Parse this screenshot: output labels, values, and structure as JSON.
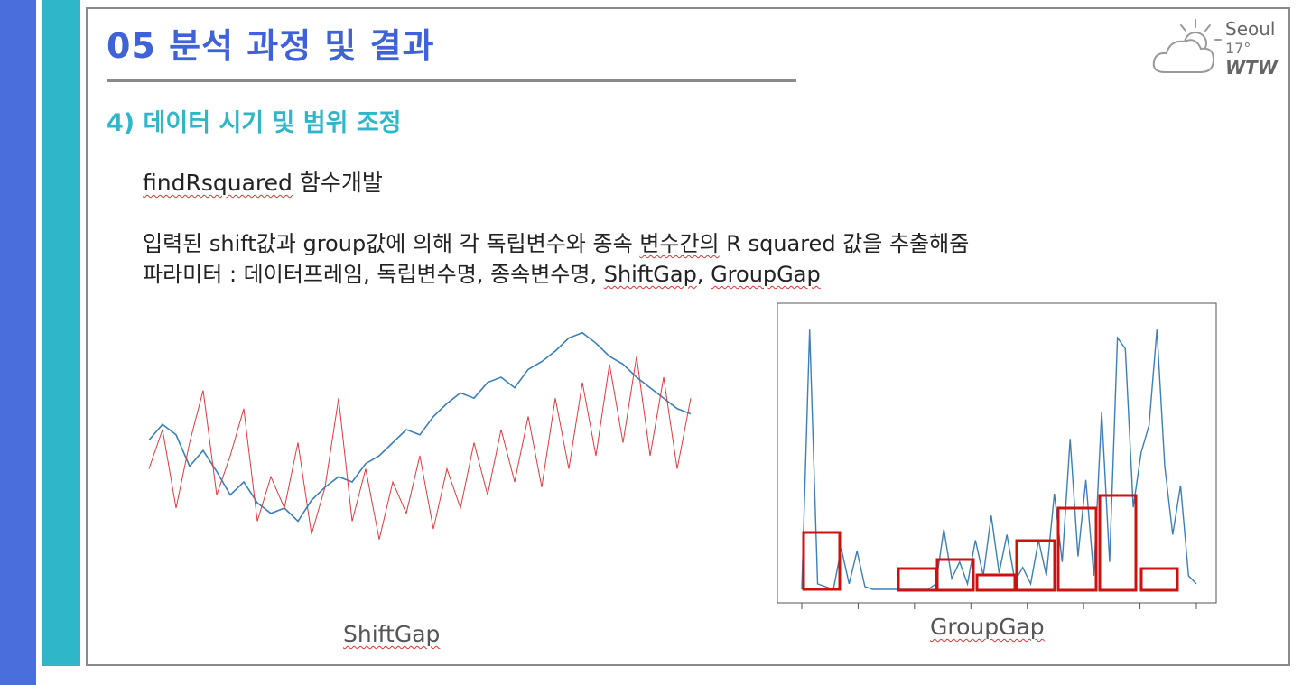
{
  "slide": {
    "title": "05 분석 과정 및 결과",
    "subtitle": "4) 데이터 시기 및 범위 조정",
    "function_name": "findRsquared",
    "function_suffix": " 함수개발",
    "desc_line1_a": "입력된 shift값과 group값에 의해 각 독립변수와 종속 ",
    "desc_line1_b": "변수간의",
    "desc_line1_c": " R squared 값을 추출해줌",
    "desc_line2_a": "파라미터 : 데이터프레임, 독립변수명, 종속변수명, ",
    "desc_line2_b": "ShiftGap",
    "desc_line2_c": ", ",
    "desc_line2_d": "GroupGap"
  },
  "weather": {
    "city": "Seoul",
    "temp": "17°",
    "brand": "WTW",
    "icon": "cloud-sun-icon"
  },
  "captions": {
    "left": "ShiftGap",
    "right": "GroupGap"
  },
  "colors": {
    "accent_blue": "#4a6fdc",
    "accent_teal": "#2fb6c8",
    "series_blue": "#3b7fb8",
    "series_red": "#e0393c",
    "box_red": "#cc1111"
  },
  "chart_data": [
    {
      "type": "line",
      "series": [
        {
          "values": [
            0.56,
            0.62,
            0.58,
            0.46,
            0.52,
            0.44,
            0.35,
            0.4,
            0.32,
            0.28,
            0.3,
            0.25,
            0.33,
            0.38,
            0.42,
            0.4,
            0.47,
            0.5,
            0.55,
            0.6,
            0.58,
            0.65,
            0.7,
            0.74,
            0.72,
            0.78,
            0.8,
            0.76,
            0.83,
            0.86,
            0.9,
            0.95,
            0.97,
            0.93,
            0.88,
            0.85,
            0.8,
            0.76,
            0.72,
            0.68,
            0.66
          ]
        },
        {
          "values": [
            0.45,
            0.6,
            0.3,
            0.55,
            0.75,
            0.35,
            0.5,
            0.68,
            0.25,
            0.42,
            0.3,
            0.55,
            0.2,
            0.38,
            0.72,
            0.25,
            0.45,
            0.18,
            0.4,
            0.28,
            0.5,
            0.22,
            0.45,
            0.3,
            0.55,
            0.35,
            0.6,
            0.4,
            0.65,
            0.38,
            0.72,
            0.45,
            0.78,
            0.5,
            0.85,
            0.55,
            0.88,
            0.5,
            0.8,
            0.45,
            0.72
          ]
        }
      ]
    },
    {
      "type": "line",
      "series": [
        {
          "values": [
            0.0,
            0.95,
            0.02,
            0.01,
            0.0,
            0.15,
            0.02,
            0.14,
            0.01,
            0.0,
            0.0,
            0.0,
            0.0,
            0.0,
            0.0,
            0.0,
            0.0,
            0.02,
            0.22,
            0.04,
            0.1,
            0.02,
            0.18,
            0.05,
            0.27,
            0.06,
            0.2,
            0.03,
            0.08,
            0.02,
            0.18,
            0.05,
            0.35,
            0.1,
            0.55,
            0.12,
            0.4,
            0.05,
            0.65,
            0.1,
            0.92,
            0.88,
            0.3,
            0.5,
            0.6,
            0.95,
            0.45,
            0.2,
            0.38,
            0.05,
            0.02
          ]
        }
      ]
    }
  ]
}
